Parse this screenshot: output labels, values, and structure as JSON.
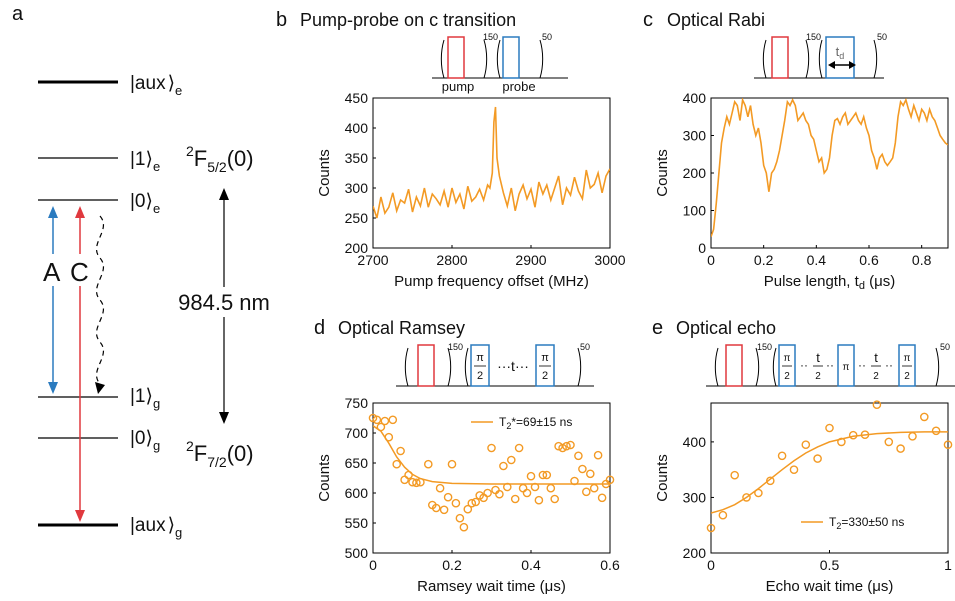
{
  "colors": {
    "orange": "#F39A24",
    "blue": "#2B7BBF",
    "red": "#E0393E",
    "black": "#000000"
  },
  "panel_a": {
    "letter": "a",
    "levels": {
      "aux_e": "|aux",
      "one_e": "|1",
      "zero_e": "|0",
      "one_g": "|1",
      "zero_g": "|0",
      "aux_g": "|aux"
    },
    "sub_e": "e",
    "sub_g": "g",
    "ket": "⟩",
    "label_A": "A",
    "label_C": "C",
    "wavelength": "984.5 nm",
    "term_upper": {
      "sup": "2",
      "base": "F",
      "sub": "5/2",
      "tail": "(0)"
    },
    "term_lower": {
      "sup": "2",
      "base": "F",
      "sub": "7/2",
      "tail": "(0)"
    }
  },
  "panel_b": {
    "letter": "b",
    "title": "Pump-probe on c transition",
    "seq": {
      "pump": "pump",
      "probe": "probe",
      "n_first": "150",
      "n_last": "50"
    }
  },
  "panel_c": {
    "letter": "c",
    "title": "Optical Rabi",
    "seq": {
      "td": "t",
      "td_sub": "d",
      "n_first": "150",
      "n_last": "50"
    }
  },
  "panel_d": {
    "letter": "d",
    "title": "Optical Ramsey",
    "seq": {
      "pi": "π",
      "two": "2",
      "wait": "···t···",
      "n_first": "150",
      "n_last": "50"
    }
  },
  "panel_e": {
    "letter": "e",
    "title": "Optical echo",
    "seq": {
      "pi": "π",
      "two": "2",
      "t": "t",
      "dots": "··",
      "n_first": "150",
      "n_last": "50"
    }
  },
  "chart_data": [
    {
      "panel": "b",
      "type": "line",
      "xlabel": "Pump frequency offset (MHz)",
      "ylabel": "Counts",
      "xlim": [
        2700,
        3000
      ],
      "ylim": [
        200,
        450
      ],
      "xticks": [
        2700,
        2800,
        2900,
        3000
      ],
      "yticks": [
        200,
        250,
        300,
        350,
        400,
        450
      ],
      "color": "#F39A24",
      "x": [
        2700,
        2705,
        2710,
        2715,
        2720,
        2725,
        2730,
        2735,
        2740,
        2745,
        2750,
        2755,
        2760,
        2765,
        2770,
        2775,
        2780,
        2785,
        2790,
        2795,
        2800,
        2805,
        2810,
        2815,
        2820,
        2825,
        2830,
        2835,
        2840,
        2845,
        2848,
        2851,
        2853,
        2855,
        2857,
        2860,
        2865,
        2870,
        2875,
        2880,
        2885,
        2890,
        2895,
        2900,
        2905,
        2910,
        2915,
        2920,
        2925,
        2930,
        2935,
        2940,
        2945,
        2950,
        2955,
        2960,
        2965,
        2970,
        2975,
        2980,
        2985,
        2990,
        2995,
        3000
      ],
      "y": [
        270,
        250,
        285,
        258,
        268,
        292,
        262,
        280,
        275,
        298,
        260,
        285,
        270,
        300,
        268,
        290,
        282,
        272,
        295,
        268,
        300,
        276,
        290,
        265,
        303,
        278,
        285,
        298,
        280,
        305,
        300,
        325,
        410,
        435,
        350,
        320,
        292,
        270,
        300,
        262,
        290,
        305,
        282,
        298,
        268,
        310,
        290,
        305,
        280,
        300,
        320,
        272,
        300,
        288,
        318,
        295,
        282,
        330,
        300,
        306,
        325,
        292,
        320,
        332
      ]
    },
    {
      "panel": "c",
      "type": "line",
      "xlabel": "Pulse length, t",
      "xlabel_sub": "d",
      "xlabel_unit": "(μs)",
      "ylabel": "Counts",
      "xlim": [
        0,
        0.9
      ],
      "ylim": [
        0,
        400
      ],
      "xticks": [
        0,
        0.2,
        0.4,
        0.6,
        0.8
      ],
      "yticks": [
        0,
        100,
        200,
        300,
        400
      ],
      "color": "#F39A24",
      "x": [
        0,
        0.01,
        0.02,
        0.03,
        0.04,
        0.05,
        0.06,
        0.07,
        0.08,
        0.09,
        0.1,
        0.11,
        0.12,
        0.13,
        0.14,
        0.15,
        0.16,
        0.17,
        0.18,
        0.19,
        0.2,
        0.21,
        0.22,
        0.23,
        0.24,
        0.25,
        0.26,
        0.27,
        0.28,
        0.29,
        0.3,
        0.31,
        0.32,
        0.33,
        0.34,
        0.35,
        0.36,
        0.37,
        0.38,
        0.39,
        0.4,
        0.41,
        0.42,
        0.43,
        0.44,
        0.45,
        0.46,
        0.47,
        0.48,
        0.49,
        0.5,
        0.51,
        0.52,
        0.53,
        0.54,
        0.55,
        0.56,
        0.57,
        0.58,
        0.59,
        0.6,
        0.61,
        0.62,
        0.63,
        0.64,
        0.65,
        0.66,
        0.67,
        0.68,
        0.69,
        0.7,
        0.71,
        0.72,
        0.73,
        0.74,
        0.75,
        0.76,
        0.77,
        0.78,
        0.79,
        0.8,
        0.81,
        0.82,
        0.83,
        0.84,
        0.85,
        0.86,
        0.87,
        0.88,
        0.89,
        0.9
      ],
      "y": [
        30,
        50,
        120,
        200,
        280,
        320,
        350,
        330,
        360,
        390,
        380,
        340,
        395,
        380,
        350,
        380,
        330,
        300,
        320,
        280,
        220,
        200,
        150,
        200,
        210,
        230,
        260,
        300,
        340,
        390,
        380,
        395,
        380,
        340,
        350,
        360,
        340,
        330,
        300,
        290,
        260,
        230,
        240,
        200,
        210,
        240,
        300,
        340,
        345,
        330,
        350,
        360,
        330,
        340,
        350,
        360,
        340,
        330,
        350,
        320,
        300,
        260,
        240,
        210,
        240,
        250,
        230,
        220,
        230,
        240,
        280,
        350,
        390,
        380,
        395,
        370,
        350,
        380,
        360,
        340,
        370,
        360,
        340,
        370,
        350,
        340,
        320,
        300,
        290,
        280,
        275
      ]
    },
    {
      "panel": "d",
      "type": "scatter",
      "xlabel": "Ramsey wait time (μs)",
      "ylabel": "Counts",
      "xlim": [
        0,
        0.6
      ],
      "ylim": [
        500,
        750
      ],
      "xticks": [
        0,
        0.2,
        0.4,
        0.6
      ],
      "yticks": [
        500,
        550,
        600,
        650,
        700,
        750
      ],
      "color": "#F39A24",
      "legend": "T",
      "legend_sub": "2",
      "legend_rest": "*=69±15 ns",
      "legend_position": "top-right",
      "fit": {
        "x": [
          0,
          0.02,
          0.04,
          0.06,
          0.08,
          0.1,
          0.12,
          0.15,
          0.2,
          0.3,
          0.4,
          0.5,
          0.6
        ],
        "y": [
          712,
          703,
          683,
          660,
          643,
          631,
          624,
          619,
          616,
          615,
          615,
          615,
          615
        ]
      },
      "x": [
        0,
        0.01,
        0.02,
        0.03,
        0.04,
        0.05,
        0.06,
        0.07,
        0.08,
        0.09,
        0.1,
        0.11,
        0.12,
        0.14,
        0.15,
        0.16,
        0.17,
        0.18,
        0.19,
        0.2,
        0.21,
        0.22,
        0.23,
        0.24,
        0.25,
        0.26,
        0.27,
        0.28,
        0.29,
        0.3,
        0.31,
        0.32,
        0.33,
        0.34,
        0.35,
        0.36,
        0.37,
        0.38,
        0.39,
        0.4,
        0.41,
        0.42,
        0.43,
        0.44,
        0.45,
        0.46,
        0.47,
        0.48,
        0.49,
        0.5,
        0.51,
        0.52,
        0.53,
        0.54,
        0.55,
        0.56,
        0.57,
        0.58,
        0.59,
        0.6
      ],
      "y": [
        725,
        722,
        710,
        720,
        693,
        722,
        648,
        670,
        622,
        630,
        618,
        617,
        618,
        648,
        580,
        575,
        608,
        572,
        593,
        648,
        583,
        558,
        543,
        573,
        583,
        585,
        596,
        592,
        600,
        675,
        605,
        598,
        645,
        610,
        655,
        590,
        675,
        608,
        600,
        628,
        610,
        588,
        630,
        630,
        608,
        590,
        678,
        675,
        678,
        680,
        620,
        662,
        640,
        602,
        632,
        608,
        663,
        592,
        615,
        622
      ]
    },
    {
      "panel": "e",
      "type": "scatter",
      "xlabel": "Echo wait time (μs)",
      "ylabel": "Counts",
      "xlim": [
        0,
        1
      ],
      "ylim": [
        200,
        470
      ],
      "xticks": [
        0,
        0.5,
        1
      ],
      "yticks": [
        200,
        300,
        400
      ],
      "color": "#F39A24",
      "legend": "T",
      "legend_sub": "2",
      "legend_rest": "=330±50 ns",
      "legend_position": "bottom-right",
      "fit": {
        "x": [
          0,
          0.05,
          0.1,
          0.15,
          0.2,
          0.25,
          0.3,
          0.35,
          0.4,
          0.45,
          0.5,
          0.6,
          0.7,
          0.8,
          0.9,
          1.0
        ],
        "y": [
          272,
          278,
          287,
          300,
          316,
          333,
          350,
          366,
          380,
          391,
          400,
          410,
          415,
          417,
          418,
          418
        ]
      },
      "x": [
        0,
        0.05,
        0.1,
        0.15,
        0.2,
        0.25,
        0.3,
        0.35,
        0.4,
        0.45,
        0.5,
        0.55,
        0.6,
        0.65,
        0.7,
        0.75,
        0.8,
        0.85,
        0.9,
        0.95,
        1.0
      ],
      "y": [
        245,
        268,
        340,
        300,
        308,
        330,
        375,
        350,
        395,
        370,
        425,
        400,
        412,
        413,
        467,
        400,
        388,
        410,
        445,
        420,
        395
      ]
    }
  ]
}
